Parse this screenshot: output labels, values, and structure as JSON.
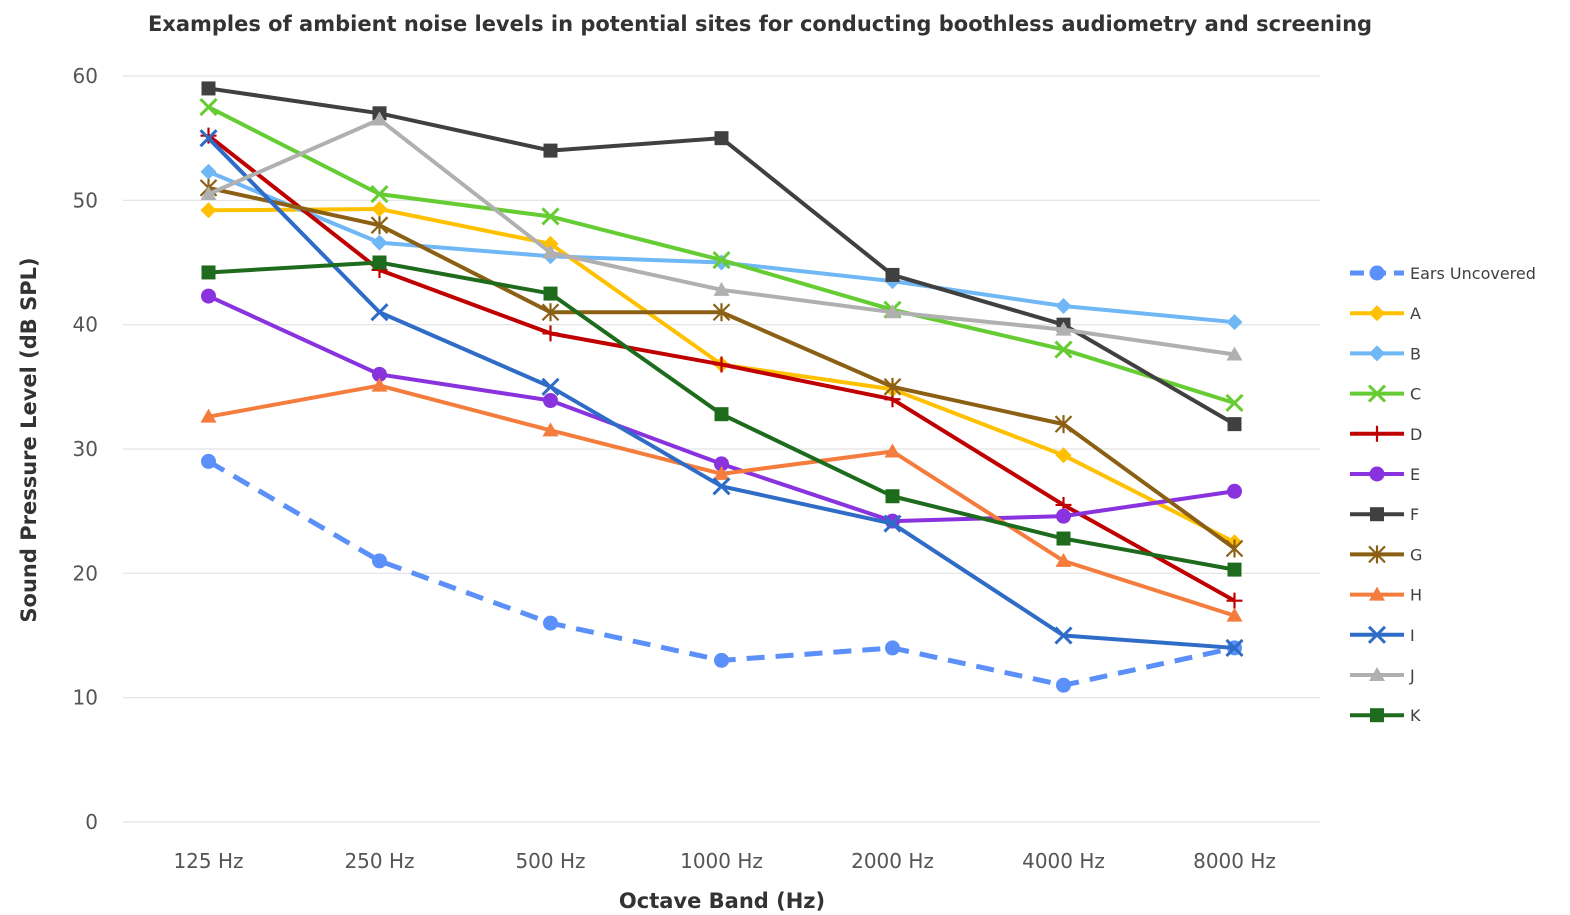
{
  "chart_data": {
    "type": "line",
    "title": "Examples of ambient noise levels in potential sites for conducting boothless audiometry and screening",
    "xlabel": "Octave Band (Hz)",
    "ylabel": "Sound Pressure Level (dB SPL)",
    "ylim": [
      0,
      60
    ],
    "yticks": [
      0,
      10,
      20,
      30,
      40,
      50,
      60
    ],
    "grid": "horizontal",
    "legend_position": "right",
    "categories": [
      "125 Hz",
      "250 Hz",
      "500 Hz",
      "1000 Hz",
      "2000 Hz",
      "4000 Hz",
      "8000 Hz"
    ],
    "series": [
      {
        "name": "Ears Uncovered",
        "color": "#5b8ff9",
        "marker": "circle",
        "dashed": true,
        "values": [
          29,
          21,
          16,
          13,
          14,
          11,
          14
        ]
      },
      {
        "name": "A",
        "color": "#ffc000",
        "marker": "diamond",
        "values": [
          49.2,
          49.3,
          46.5,
          36.8,
          34.8,
          29.5,
          22.5
        ]
      },
      {
        "name": "B",
        "color": "#6fb7f5",
        "marker": "diamond",
        "values": [
          52.3,
          46.6,
          45.5,
          45,
          43.5,
          41.5,
          40.2
        ]
      },
      {
        "name": "C",
        "color": "#66cc33",
        "marker": "x",
        "values": [
          57.5,
          50.5,
          48.7,
          45.2,
          41.2,
          38,
          33.7
        ]
      },
      {
        "name": "D",
        "color": "#c00000",
        "marker": "plus",
        "values": [
          55.2,
          44.4,
          39.3,
          36.8,
          34,
          25.5,
          17.8
        ]
      },
      {
        "name": "E",
        "color": "#8833dd",
        "marker": "circle",
        "values": [
          42.3,
          36,
          33.9,
          28.8,
          24.2,
          24.6,
          26.6
        ]
      },
      {
        "name": "F",
        "color": "#404040",
        "marker": "square",
        "values": [
          59,
          57,
          54,
          55,
          44,
          40,
          32
        ]
      },
      {
        "name": "G",
        "color": "#8b6014",
        "marker": "star",
        "values": [
          51,
          48,
          41,
          41,
          35,
          32,
          22
        ]
      },
      {
        "name": "H",
        "color": "#f47c3c",
        "marker": "triangle",
        "values": [
          32.6,
          35.1,
          31.5,
          28,
          29.8,
          21,
          16.6
        ]
      },
      {
        "name": "I",
        "color": "#2e6cc7",
        "marker": "x",
        "values": [
          55,
          41,
          35,
          27,
          24,
          15,
          14
        ]
      },
      {
        "name": "J",
        "color": "#b0b0b0",
        "marker": "triangle",
        "values": [
          50.5,
          56.5,
          45.8,
          42.8,
          41,
          39.6,
          37.6
        ]
      },
      {
        "name": "K",
        "color": "#1e6b1e",
        "marker": "square",
        "values": [
          44.2,
          45,
          42.5,
          32.8,
          26.2,
          22.8,
          20.3
        ]
      }
    ]
  }
}
